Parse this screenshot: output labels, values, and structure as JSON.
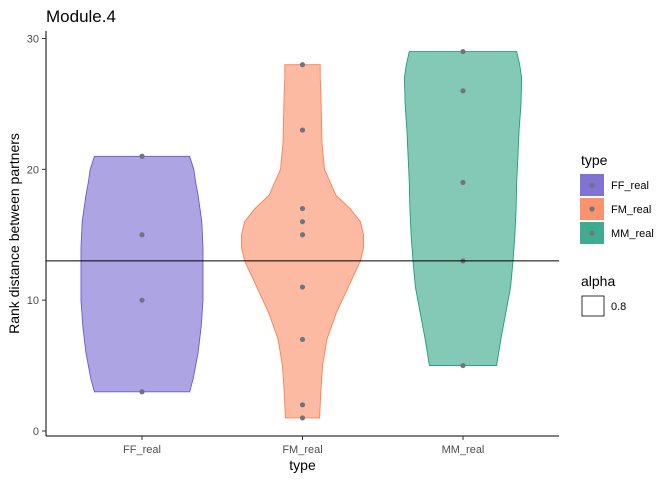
{
  "chart_data": {
    "type": "violin",
    "title": "Module.4",
    "xlabel": "type",
    "ylabel": "Rank distance between partners",
    "ylim": [
      0,
      30
    ],
    "yticks": [
      0,
      10,
      20,
      30
    ],
    "grid": false,
    "hline": 13,
    "categories": [
      "FF_real",
      "FM_real",
      "MM_real"
    ],
    "series": [
      {
        "name": "FF_real",
        "color": "#6a5acd",
        "points": [
          21,
          15,
          10,
          3
        ],
        "violin": [
          [
            3,
            0.78
          ],
          [
            4,
            0.84
          ],
          [
            6,
            0.92
          ],
          [
            8,
            0.97
          ],
          [
            10,
            1.0
          ],
          [
            12,
            1.0
          ],
          [
            14,
            1.0
          ],
          [
            16,
            0.98
          ],
          [
            18,
            0.92
          ],
          [
            19,
            0.88
          ],
          [
            20,
            0.85
          ],
          [
            21,
            0.78
          ]
        ]
      },
      {
        "name": "FM_real",
        "color": "#fa8155",
        "points": [
          28,
          23,
          17,
          16,
          15,
          11,
          7,
          2,
          1
        ],
        "violin": [
          [
            1,
            0.28
          ],
          [
            2,
            0.29
          ],
          [
            3,
            0.3
          ],
          [
            5,
            0.33
          ],
          [
            7,
            0.4
          ],
          [
            9,
            0.55
          ],
          [
            11,
            0.75
          ],
          [
            13,
            0.95
          ],
          [
            14,
            1.0
          ],
          [
            15,
            1.0
          ],
          [
            16,
            0.95
          ],
          [
            17,
            0.78
          ],
          [
            18,
            0.55
          ],
          [
            20,
            0.36
          ],
          [
            22,
            0.32
          ],
          [
            24,
            0.31
          ],
          [
            26,
            0.3
          ],
          [
            27,
            0.29
          ],
          [
            28,
            0.29
          ]
        ]
      },
      {
        "name": "MM_real",
        "color": "#1e9c7a",
        "points": [
          29,
          26,
          19,
          13,
          5
        ],
        "violin": [
          [
            5,
            0.55
          ],
          [
            7,
            0.62
          ],
          [
            9,
            0.7
          ],
          [
            11,
            0.78
          ],
          [
            13,
            0.82
          ],
          [
            15,
            0.85
          ],
          [
            17,
            0.87
          ],
          [
            19,
            0.88
          ],
          [
            21,
            0.9
          ],
          [
            23,
            0.92
          ],
          [
            25,
            0.95
          ],
          [
            27,
            0.96
          ],
          [
            28,
            0.93
          ],
          [
            29,
            0.88
          ]
        ]
      }
    ],
    "legend": {
      "placement": "right",
      "type_title": "type",
      "alpha_title": "alpha",
      "alpha_value": "0.8"
    }
  }
}
